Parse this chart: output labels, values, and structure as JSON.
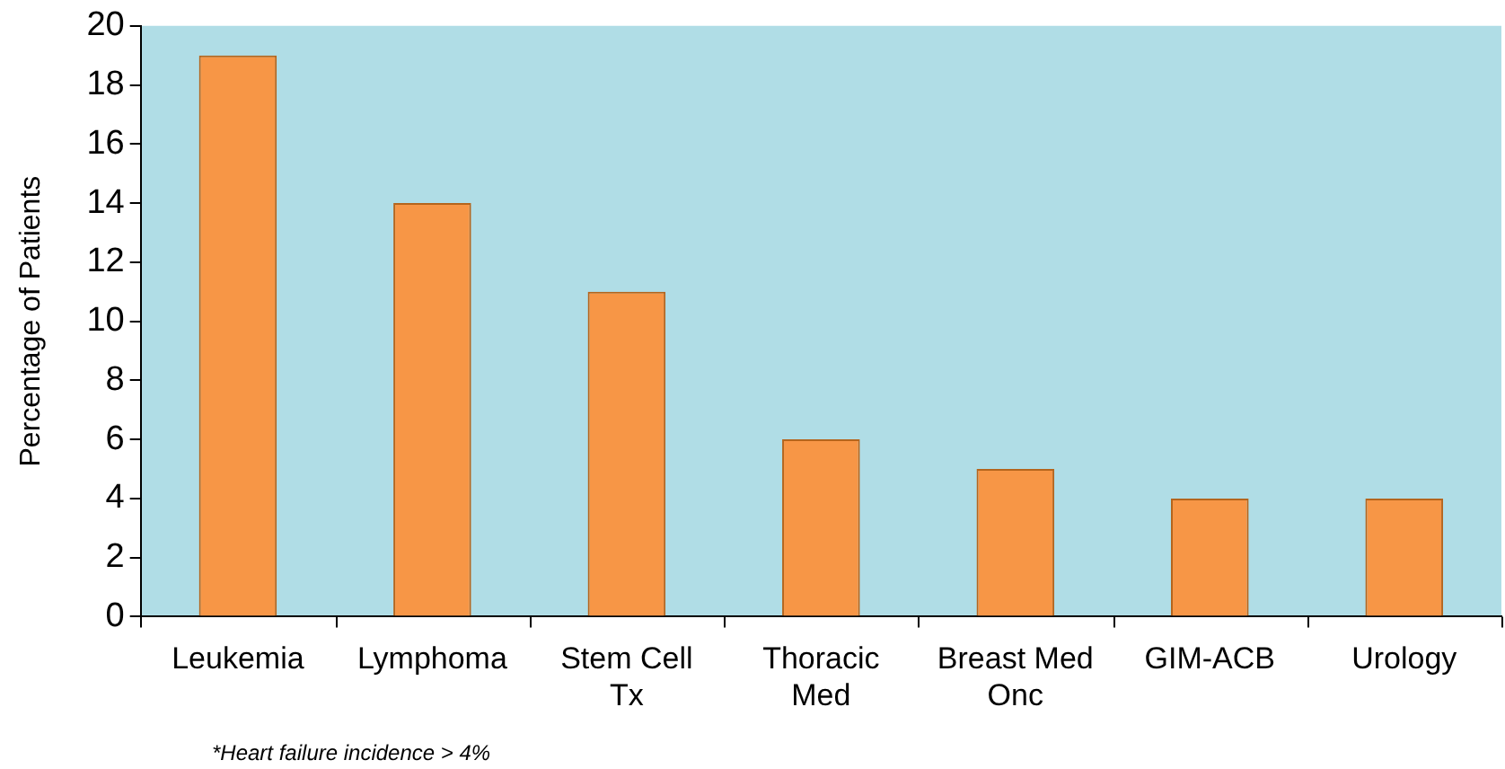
{
  "chart_data": {
    "type": "bar",
    "ylabel": "Percentage of Patients",
    "categories": [
      "Leukemia",
      "Lymphoma",
      "Stem Cell Tx",
      "Thoracic Med",
      "Breast Med Onc",
      "GIM-ACB",
      "Urology"
    ],
    "values": [
      19,
      14,
      11,
      6,
      5,
      4,
      4
    ],
    "color": "#f79646",
    "ylim": [
      0,
      20
    ],
    "yticks": [
      0,
      2,
      4,
      6,
      8,
      10,
      12,
      14,
      16,
      18,
      20
    ],
    "grid": false,
    "legend": false,
    "annotations": [
      "*Heart failure incidence > 4%"
    ]
  }
}
